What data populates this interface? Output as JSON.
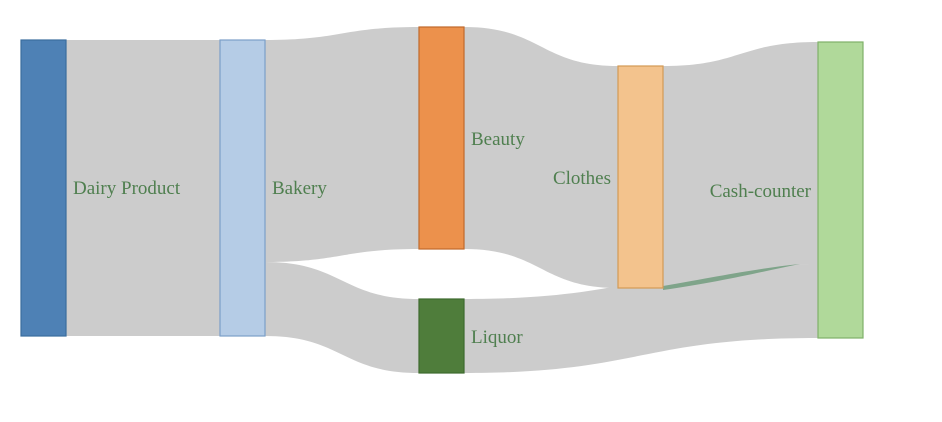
{
  "nodes": {
    "dairy": {
      "label": "Dairy Product",
      "color": "#4e81b5",
      "stroke": "#3a6d9e"
    },
    "bakery": {
      "label": "Bakery",
      "color": "#b5cce6",
      "stroke": "#7b9fc8"
    },
    "beauty": {
      "label": "Beauty",
      "color": "#ec914c",
      "stroke": "#c0692b"
    },
    "liquor": {
      "label": "Liquor",
      "color": "#4f7d3b",
      "stroke": "#3e6a2e"
    },
    "clothes": {
      "label": "Clothes",
      "color": "#f3c38d",
      "stroke": "#d39a55"
    },
    "cash": {
      "label": "Cash-counter",
      "color": "#b0d99a",
      "stroke": "#7fb169"
    }
  },
  "link_color": "#cccccc",
  "highlight_link_color": "#7fa48a"
}
